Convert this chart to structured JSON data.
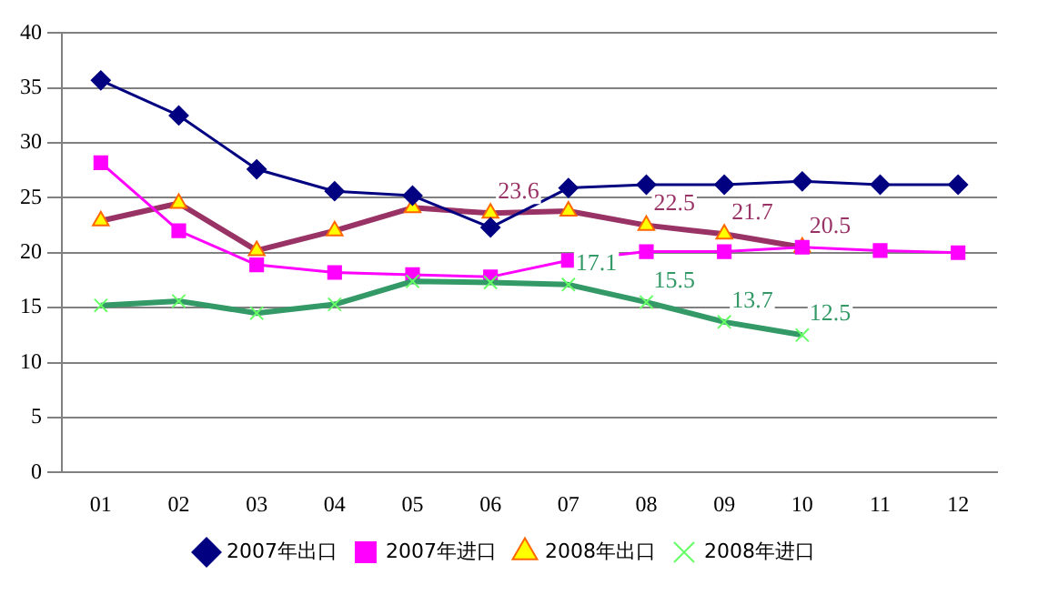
{
  "chart_data": {
    "type": "line",
    "categories": [
      "01",
      "02",
      "03",
      "04",
      "05",
      "06",
      "07",
      "08",
      "09",
      "10",
      "11",
      "12"
    ],
    "ylim": [
      0,
      40
    ],
    "yticks": [
      0,
      5,
      10,
      15,
      20,
      25,
      30,
      35,
      40
    ],
    "grid": "y",
    "legend": "bottom",
    "series": [
      {
        "name": "2007年出口",
        "color": "#000080",
        "marker": "diamond",
        "values": [
          35.7,
          32.5,
          27.6,
          25.6,
          25.2,
          22.3,
          25.9,
          26.2,
          26.2,
          26.5,
          26.2,
          26.2
        ]
      },
      {
        "name": "2007年进口",
        "color": "#ff00ff",
        "marker": "square",
        "values": [
          28.2,
          22.0,
          18.9,
          18.2,
          18.0,
          17.8,
          19.3,
          20.1,
          20.1,
          20.5,
          20.2,
          20.0
        ]
      },
      {
        "name": "2008年出口",
        "color": "#993366",
        "marker": "triangle",
        "values": [
          22.9,
          24.5,
          20.2,
          22.0,
          24.1,
          23.6,
          23.8,
          22.5,
          21.7,
          20.5,
          null,
          null
        ],
        "value_labels": [
          null,
          null,
          null,
          null,
          null,
          "23.6",
          null,
          "22.5",
          "21.7",
          "20.5",
          null,
          null
        ]
      },
      {
        "name": "2008年进口",
        "color": "#339966",
        "marker": "cross",
        "values": [
          15.2,
          15.6,
          14.5,
          15.3,
          17.4,
          17.3,
          17.1,
          15.5,
          13.7,
          12.5,
          null,
          null
        ],
        "value_labels": [
          null,
          null,
          null,
          null,
          null,
          null,
          "17.1",
          "15.5",
          "13.7",
          "12.5",
          null,
          null
        ]
      }
    ]
  }
}
